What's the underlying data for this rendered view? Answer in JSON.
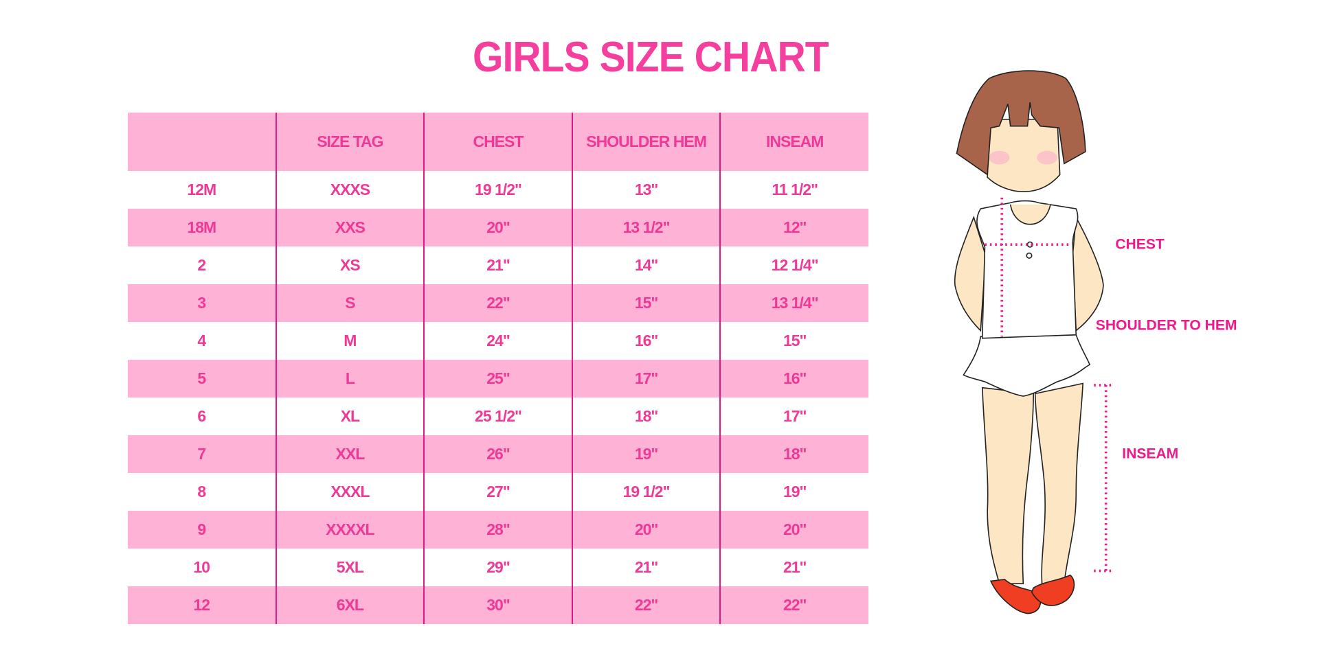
{
  "title": "GIRLS SIZE CHART",
  "table": {
    "headers": [
      "",
      "SIZE TAG",
      "CHEST",
      "SHOULDER HEM",
      "INSEAM"
    ],
    "rows": [
      [
        "12M",
        "XXXS",
        "19 1/2\"",
        "13\"",
        "11 1/2\""
      ],
      [
        "18M",
        "XXS",
        "20\"",
        "13 1/2\"",
        "12\""
      ],
      [
        "2",
        "XS",
        "21\"",
        "14\"",
        "12 1/4\""
      ],
      [
        "3",
        "S",
        "22\"",
        "15\"",
        "13 1/4\""
      ],
      [
        "4",
        "M",
        "24\"",
        "16\"",
        "15\""
      ],
      [
        "5",
        "L",
        "25\"",
        "17\"",
        "16\""
      ],
      [
        "6",
        "XL",
        "25 1/2\"",
        "18\"",
        "17\""
      ],
      [
        "7",
        "XXL",
        "26\"",
        "19\"",
        "18\""
      ],
      [
        "8",
        "XXXL",
        "27\"",
        "19 1/2\"",
        "19\""
      ],
      [
        "9",
        "XXXXL",
        "28\"",
        "20\"",
        "20\""
      ],
      [
        "10",
        "5XL",
        "29\"",
        "21\"",
        "21\""
      ],
      [
        "12",
        "6XL",
        "30\"",
        "22\"",
        "22\""
      ]
    ]
  },
  "figure": {
    "labels": {
      "chest": "CHEST",
      "shoulder": "SHOULDER TO HEM",
      "inseam": "INSEAM"
    }
  },
  "colors": {
    "accent": "#f43f9f",
    "header_bg": "#fdb2d6",
    "divider": "#e01a88"
  }
}
